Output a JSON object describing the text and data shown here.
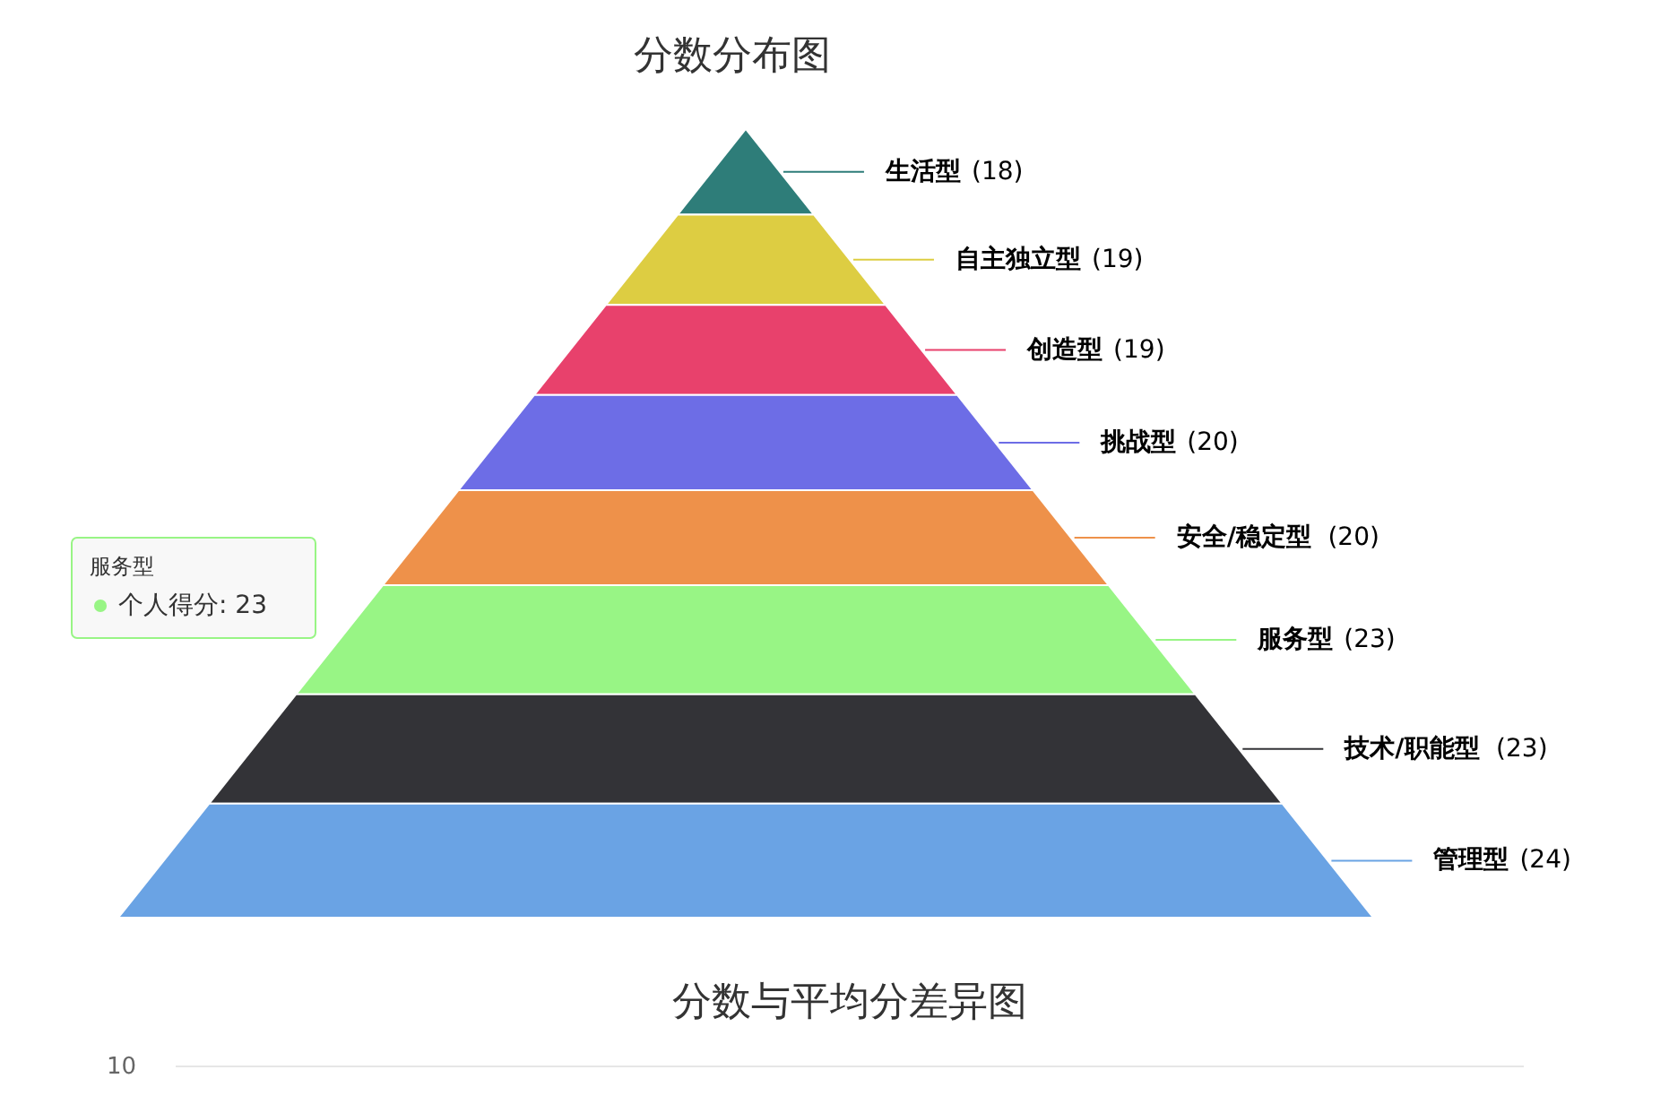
{
  "chart_data": [
    {
      "type": "other",
      "title": "分数分布图",
      "categories": [
        "生活型",
        "自主独立型",
        "创造型",
        "挑战型",
        "安全/稳定型",
        "服务型",
        "技术/职能型",
        "管理型"
      ],
      "values": [
        18,
        19,
        19,
        20,
        20,
        23,
        23,
        24
      ],
      "value_labels": [
        "(18)",
        "(19)",
        "(19)",
        "(20)",
        "(20)",
        "(23)",
        "(23)",
        "(24)"
      ],
      "colors": [
        "#2e7d79",
        "#ddcd42",
        "#e8416c",
        "#6d6de6",
        "#ee914a",
        "#98f585",
        "#333337",
        "#6aa3e4"
      ],
      "annotations": [
        "服务型",
        "个人得分: 23"
      ]
    },
    {
      "type": "other",
      "title": "分数与平均分差异图",
      "ref_lines": [
        {
          "axis": "y",
          "label": "10",
          "color": "#e6e6e6"
        }
      ]
    }
  ]
}
